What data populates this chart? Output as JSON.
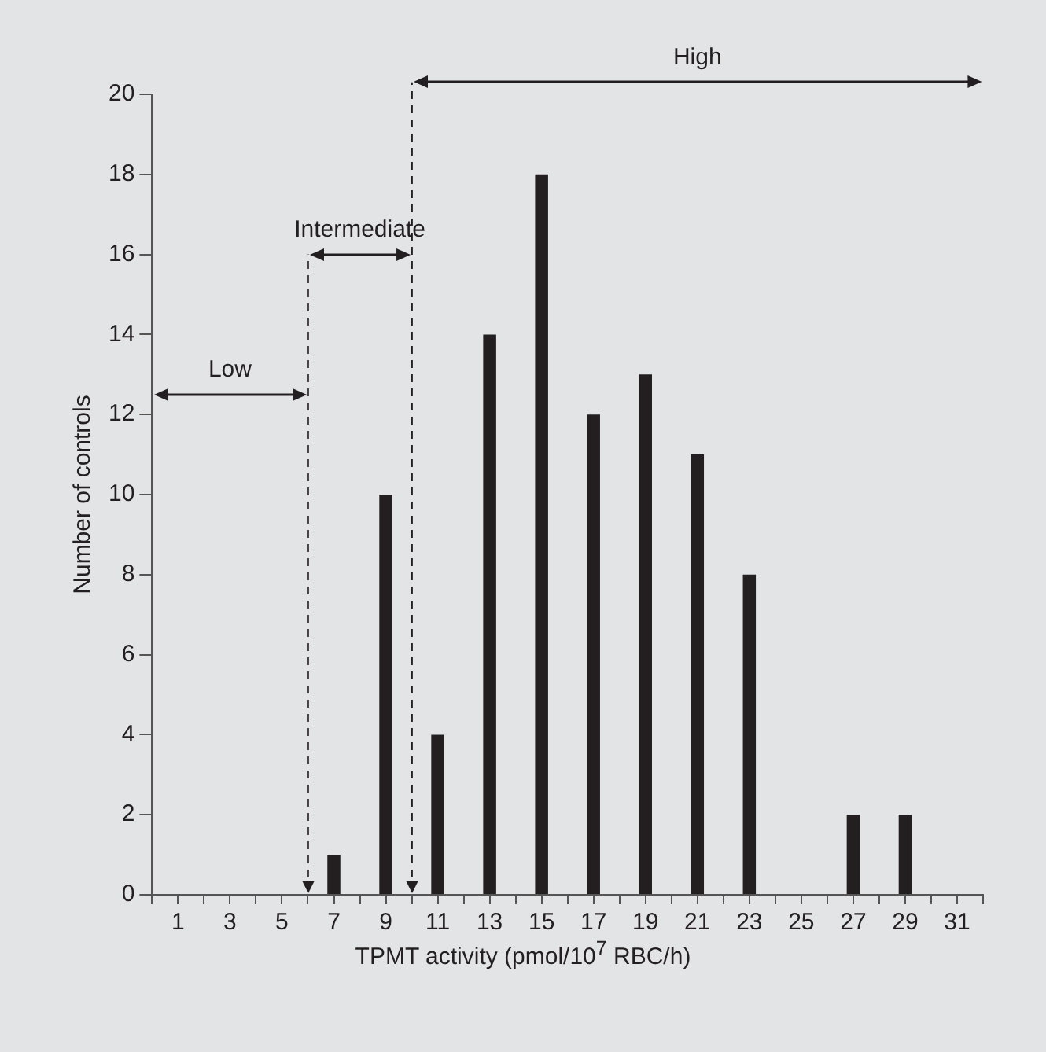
{
  "chart_data": {
    "type": "bar",
    "xlabel": "TPMT activity (pmol/10$^{7}$ RBC/h)",
    "ylabel": "Number of controls",
    "x": [
      1,
      3,
      5,
      7,
      9,
      11,
      13,
      15,
      17,
      19,
      21,
      23,
      25,
      27,
      29,
      31
    ],
    "values": [
      0,
      0,
      0,
      1,
      10,
      4,
      14,
      18,
      12,
      13,
      11,
      8,
      0,
      2,
      2,
      0
    ],
    "color": "#231f20",
    "xlim": [
      0,
      32
    ],
    "xticks": [
      {
        "value": 0,
        "label": null
      },
      1,
      {
        "value": 2,
        "label": null
      },
      3,
      {
        "value": 4,
        "label": null
      },
      5,
      {
        "value": 6,
        "label": null
      },
      7,
      {
        "value": 8,
        "label": null
      },
      9,
      {
        "value": 10,
        "label": null
      },
      11,
      {
        "value": 12,
        "label": null
      },
      13,
      {
        "value": 14,
        "label": null
      },
      15,
      {
        "value": 16,
        "label": null
      },
      17,
      {
        "value": 18,
        "label": null
      },
      19,
      {
        "value": 20,
        "label": null
      },
      21,
      {
        "value": 22,
        "label": null
      },
      23,
      {
        "value": 24,
        "label": null
      },
      25,
      {
        "value": 26,
        "label": null
      },
      27,
      {
        "value": 28,
        "label": null
      },
      29,
      {
        "value": 30,
        "label": null
      },
      31,
      {
        "value": 32,
        "label": null
      }
    ],
    "ylim": [
      0,
      20
    ],
    "yticks": [
      0,
      2,
      4,
      6,
      8,
      10,
      12,
      14,
      16,
      18,
      20
    ],
    "ref_lines": [
      {
        "axis": "x",
        "value": 6,
        "line_style": "dashed",
        "color": "#231f20"
      },
      {
        "axis": "x",
        "value": 10,
        "line_style": "dashed",
        "color": "#231f20"
      }
    ],
    "annotations": [
      "Low",
      "Intermediate",
      "High"
    ],
    "grid": false,
    "legend": false
  }
}
